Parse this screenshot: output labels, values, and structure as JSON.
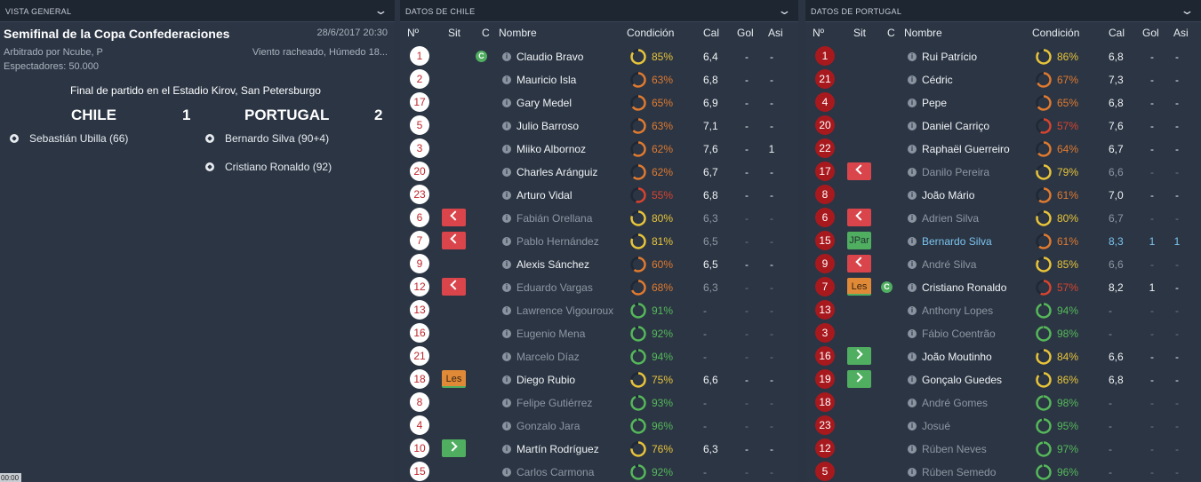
{
  "overview": {
    "header": "VISTA GENERAL",
    "title": "Semifinal de la Copa Confederaciones",
    "date": "28/6/2017 20:30",
    "referee": "Arbitrado por Ncube, P",
    "weather": "Viento racheado, Húmedo 18...",
    "attendance": "Espectadores: 50.000",
    "final_text": "Final de partido en el Estadio Kirov, San Petersburgo",
    "home_team": "CHILE",
    "home_score": "1",
    "away_team": "PORTUGAL",
    "away_score": "2",
    "home_scorers": [
      "Sebastián Ubilla (66)"
    ],
    "away_scorers": [
      "Bernardo Silva (90+4)",
      "Cristiano Ronaldo (92)"
    ],
    "clock": "00:00"
  },
  "colors": {
    "good": "#e8c43a",
    "mid": "#e07a2f",
    "low": "#d8442f",
    "fresh": "#56b85a",
    "highlight": "#7cc4ee"
  },
  "chile": {
    "header": "DATOS DE CHILE",
    "columns": {
      "num": "Nº",
      "sit": "Sit",
      "cap": "C",
      "name": "Nombre",
      "cond": "Condición",
      "cal": "Cal",
      "gol": "Gol",
      "asi": "Asi"
    },
    "players": [
      {
        "num": "1",
        "sit": "",
        "cap": "C",
        "name": "Claudio Bravo",
        "cond": "85%",
        "cal": "6,4",
        "gol": "-",
        "asi": "-",
        "bench": false
      },
      {
        "num": "2",
        "sit": "",
        "cap": "",
        "name": "Mauricio Isla",
        "cond": "63%",
        "cal": "6,8",
        "gol": "-",
        "asi": "-",
        "bench": false
      },
      {
        "num": "17",
        "sit": "",
        "cap": "",
        "name": "Gary Medel",
        "cond": "65%",
        "cal": "6,9",
        "gol": "-",
        "asi": "-",
        "bench": false
      },
      {
        "num": "5",
        "sit": "",
        "cap": "",
        "name": "Julio Barroso",
        "cond": "63%",
        "cal": "7,1",
        "gol": "-",
        "asi": "-",
        "bench": false
      },
      {
        "num": "3",
        "sit": "",
        "cap": "",
        "name": "Miiko Albornoz",
        "cond": "62%",
        "cal": "7,6",
        "gol": "-",
        "asi": "1",
        "bench": false
      },
      {
        "num": "20",
        "sit": "",
        "cap": "",
        "name": "Charles Aránguiz",
        "cond": "62%",
        "cal": "6,7",
        "gol": "-",
        "asi": "-",
        "bench": false
      },
      {
        "num": "23",
        "sit": "",
        "cap": "",
        "name": "Arturo Vidal",
        "cond": "55%",
        "cal": "6,8",
        "gol": "-",
        "asi": "-",
        "bench": false
      },
      {
        "num": "6",
        "sit": "out",
        "cap": "",
        "name": "Fabián Orellana",
        "cond": "80%",
        "cal": "6,3",
        "gol": "-",
        "asi": "-",
        "bench": true
      },
      {
        "num": "7",
        "sit": "out",
        "cap": "",
        "name": "Pablo Hernández",
        "cond": "81%",
        "cal": "6,5",
        "gol": "-",
        "asi": "-",
        "bench": true
      },
      {
        "num": "9",
        "sit": "",
        "cap": "",
        "name": "Alexis Sánchez",
        "cond": "60%",
        "cal": "6,5",
        "gol": "-",
        "asi": "-",
        "bench": false
      },
      {
        "num": "12",
        "sit": "out",
        "cap": "",
        "name": "Eduardo Vargas",
        "cond": "68%",
        "cal": "6,3",
        "gol": "-",
        "asi": "-",
        "bench": true
      },
      {
        "num": "13",
        "sit": "",
        "cap": "",
        "name": "Lawrence Vigouroux",
        "cond": "91%",
        "cal": "-",
        "gol": "-",
        "asi": "-",
        "bench": true
      },
      {
        "num": "16",
        "sit": "",
        "cap": "",
        "name": "Eugenio Mena",
        "cond": "92%",
        "cal": "-",
        "gol": "-",
        "asi": "-",
        "bench": true
      },
      {
        "num": "21",
        "sit": "",
        "cap": "",
        "name": "Marcelo Díaz",
        "cond": "94%",
        "cal": "-",
        "gol": "-",
        "asi": "-",
        "bench": true
      },
      {
        "num": "18",
        "sit": "Les",
        "cap": "",
        "name": "Diego Rubio",
        "cond": "75%",
        "cal": "6,6",
        "gol": "-",
        "asi": "-",
        "bench": false
      },
      {
        "num": "8",
        "sit": "",
        "cap": "",
        "name": "Felipe Gutiérrez",
        "cond": "93%",
        "cal": "-",
        "gol": "-",
        "asi": "-",
        "bench": true
      },
      {
        "num": "4",
        "sit": "",
        "cap": "",
        "name": "Gonzalo Jara",
        "cond": "96%",
        "cal": "-",
        "gol": "-",
        "asi": "-",
        "bench": true
      },
      {
        "num": "10",
        "sit": "in",
        "cap": "",
        "name": "Martín Rodríguez",
        "cond": "76%",
        "cal": "6,3",
        "gol": "-",
        "asi": "-",
        "bench": false
      },
      {
        "num": "15",
        "sit": "",
        "cap": "",
        "name": "Carlos Carmona",
        "cond": "92%",
        "cal": "-",
        "gol": "-",
        "asi": "-",
        "bench": true
      }
    ]
  },
  "portugal": {
    "header": "DATOS DE PORTUGAL",
    "columns": {
      "num": "Nº",
      "sit": "Sit",
      "cap": "C",
      "name": "Nombre",
      "cond": "Condición",
      "cal": "Cal",
      "gol": "Gol",
      "asi": "Asi"
    },
    "players": [
      {
        "num": "1",
        "sit": "",
        "cap": "",
        "name": "Rui Patrício",
        "cond": "86%",
        "cal": "6,8",
        "gol": "-",
        "asi": "-",
        "bench": false
      },
      {
        "num": "21",
        "sit": "",
        "cap": "",
        "name": "Cédric",
        "cond": "67%",
        "cal": "7,3",
        "gol": "-",
        "asi": "-",
        "bench": false
      },
      {
        "num": "4",
        "sit": "",
        "cap": "",
        "name": "Pepe",
        "cond": "65%",
        "cal": "6,8",
        "gol": "-",
        "asi": "-",
        "bench": false
      },
      {
        "num": "20",
        "sit": "",
        "cap": "",
        "name": "Daniel Carriço",
        "cond": "57%",
        "cal": "7,6",
        "gol": "-",
        "asi": "-",
        "bench": false
      },
      {
        "num": "22",
        "sit": "",
        "cap": "",
        "name": "Raphaël Guerreiro",
        "cond": "64%",
        "cal": "6,7",
        "gol": "-",
        "asi": "-",
        "bench": false
      },
      {
        "num": "17",
        "sit": "out",
        "cap": "",
        "name": "Danilo Pereira",
        "cond": "79%",
        "cal": "6,6",
        "gol": "-",
        "asi": "-",
        "bench": true
      },
      {
        "num": "8",
        "sit": "",
        "cap": "",
        "name": "João Mário",
        "cond": "61%",
        "cal": "7,0",
        "gol": "-",
        "asi": "-",
        "bench": false
      },
      {
        "num": "6",
        "sit": "out",
        "cap": "",
        "name": "Adrien Silva",
        "cond": "80%",
        "cal": "6,7",
        "gol": "-",
        "asi": "-",
        "bench": true
      },
      {
        "num": "15",
        "sit": "JPar",
        "cap": "",
        "name": "Bernardo Silva",
        "cond": "61%",
        "cal": "8,3",
        "gol": "1",
        "asi": "1",
        "bench": false,
        "star": true
      },
      {
        "num": "9",
        "sit": "out",
        "cap": "",
        "name": "André Silva",
        "cond": "85%",
        "cal": "6,6",
        "gol": "-",
        "asi": "-",
        "bench": true
      },
      {
        "num": "7",
        "sit": "Les",
        "cap": "C",
        "name": "Cristiano Ronaldo",
        "cond": "57%",
        "cal": "8,2",
        "gol": "1",
        "asi": "-",
        "bench": false
      },
      {
        "num": "13",
        "sit": "",
        "cap": "",
        "name": "Anthony Lopes",
        "cond": "94%",
        "cal": "-",
        "gol": "-",
        "asi": "-",
        "bench": true
      },
      {
        "num": "3",
        "sit": "",
        "cap": "",
        "name": "Fábio Coentrão",
        "cond": "98%",
        "cal": "-",
        "gol": "-",
        "asi": "-",
        "bench": true
      },
      {
        "num": "16",
        "sit": "in",
        "cap": "",
        "name": "João Moutinho",
        "cond": "84%",
        "cal": "6,6",
        "gol": "-",
        "asi": "-",
        "bench": false
      },
      {
        "num": "19",
        "sit": "in",
        "cap": "",
        "name": "Gonçalo Guedes",
        "cond": "86%",
        "cal": "6,8",
        "gol": "-",
        "asi": "-",
        "bench": false
      },
      {
        "num": "18",
        "sit": "",
        "cap": "",
        "name": "André Gomes",
        "cond": "98%",
        "cal": "-",
        "gol": "-",
        "asi": "-",
        "bench": true
      },
      {
        "num": "23",
        "sit": "",
        "cap": "",
        "name": "Josué",
        "cond": "95%",
        "cal": "-",
        "gol": "-",
        "asi": "-",
        "bench": true
      },
      {
        "num": "12",
        "sit": "",
        "cap": "",
        "name": "Rúben Neves",
        "cond": "97%",
        "cal": "-",
        "gol": "-",
        "asi": "-",
        "bench": true
      },
      {
        "num": "5",
        "sit": "",
        "cap": "",
        "name": "Rúben Semedo",
        "cond": "96%",
        "cal": "-",
        "gol": "-",
        "asi": "-",
        "bench": true
      }
    ]
  }
}
